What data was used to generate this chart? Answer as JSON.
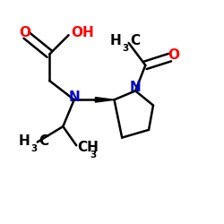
{
  "bg_color": "#ffffff",
  "bond_color": "#000000",
  "bond_width": 1.8,
  "atom_colors": {
    "O": "#ff0000",
    "N": "#0000cc",
    "C": "#000000"
  },
  "font_size_main": 11,
  "font_size_sub": 7.5,
  "figsize": [
    2.5,
    2.5
  ],
  "dpi": 100,
  "xlim": [
    0,
    10
  ],
  "ylim": [
    0,
    10
  ]
}
